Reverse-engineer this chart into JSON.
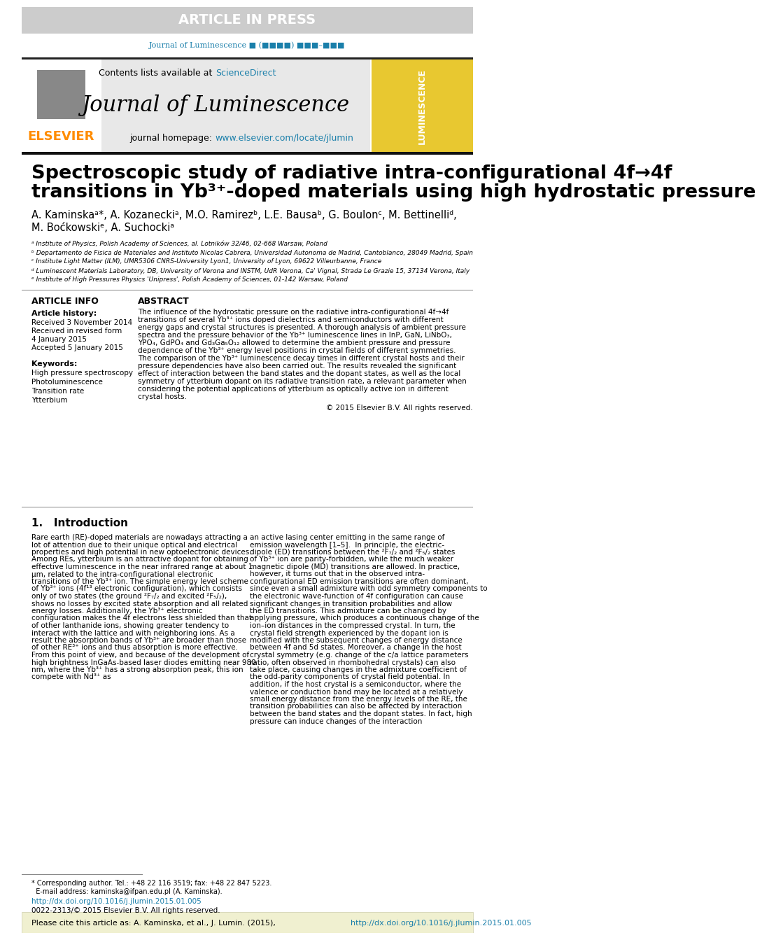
{
  "article_in_press_text": "ARTICLE IN PRESS",
  "article_in_press_bg": "#cccccc",
  "article_in_press_color": "#ffffff",
  "journal_ref_color": "#1a7faa",
  "journal_ref_text": "Journal of Luminescence ■ (■■■■) ■■■–■■■",
  "header_bg": "#e8e8e8",
  "contents_text": "Contents lists available at ",
  "sciencedirect_text": "ScienceDirect",
  "sciencedirect_color": "#1a7faa",
  "journal_title": "Journal of Luminescence",
  "journal_homepage_text": "journal homepage: ",
  "journal_homepage_url": "www.elsevier.com/locate/jlumin",
  "journal_homepage_url_color": "#1a7faa",
  "elsevier_color": "#ff8c00",
  "paper_title_line1": "Spectroscopic study of radiative intra-configurational 4f→4f",
  "paper_title_line2": "transitions in Yb³⁺-doped materials using high hydrostatic pressure",
  "authors_line1": "A. Kaminskaᵃ*, A. Kozaneckiᵃ, M.O. Ramirezᵇ, L.E. Bausaᵇ, G. Boulonᶜ, M. Bettinelliᵈ,",
  "authors_line2": "M. Boćkowskiᵉ, A. Suchockiᵃ",
  "affil_a": "ᵃ Institute of Physics, Polish Academy of Sciences, al. Lotników 32/46, 02-668 Warsaw, Poland",
  "affil_b": "ᵇ Departamento de Fisica de Materiales and Instituto Nicolas Cabrera, Universidad Autonoma de Madrid, Cantoblanco, 28049 Madrid, Spain",
  "affil_c": "ᶜ Institute Light Matter (ILM), UMR5306 CNRS-University Lyon1, University of Lyon, 69622 Villeurbanne, France",
  "affil_d": "ᵈ Luminescent Materials Laboratory, DB, University of Verona and INSTM, UdR Verona, Ca' Vignal, Strada Le Grazie 15, 37134 Verona, Italy",
  "affil_e": "ᵉ Institute of High Pressures Physics 'Unipress', Polish Academy of Sciences, 01-142 Warsaw, Poland",
  "article_info_title": "ARTICLE INFO",
  "article_history_title": "Article history:",
  "received_text": "Received 3 November 2014",
  "received_revised_text": "Received in revised form\n4 January 2015",
  "accepted_text": "Accepted 5 January 2015",
  "keywords_title": "Keywords:",
  "keywords": [
    "High pressure spectroscopy",
    "Photoluminescence",
    "Transition rate",
    "Ytterbium"
  ],
  "abstract_title": "ABSTRACT",
  "abstract_text": "The influence of the hydrostatic pressure on the radiative intra-configurational 4f→4f transitions of several Yb³⁺ ions doped dielectrics and semiconductors with different energy gaps and crystal structures is presented. A thorough analysis of ambient pressure spectra and the pressure behavior of the Yb³⁺ luminescence lines in InP, GaN, LiNbO₃, YPO₄, GdPO₄ and Gd₃Ga₅O₁₂ allowed to determine the ambient pressure and pressure dependence of the Yb³⁺ energy level positions in crystal fields of different symmetries. The comparison of the Yb³⁺ luminescence decay times in different crystal hosts and their pressure dependencies have also been carried out. The results revealed the significant effect of interaction between the band states and the dopant states, as well as the local symmetry of ytterbium dopant on its radiative transition rate, a relevant parameter when considering the potential applications of ytterbium as optically active ion in different crystal hosts.",
  "copyright_text": "© 2015 Elsevier B.V. All rights reserved.",
  "intro_title": "1.   Introduction",
  "intro_col1": "Rare earth (RE)-doped materials are nowadays attracting a lot of attention due to their unique optical and electrical properties and high potential in new optoelectronic devices. Among REs, ytterbium is an attractive dopant for obtaining effective luminescence in the near infrared range at about 1 μm, related to the intra-configurational electronic transitions of the Yb³⁺ ion. The simple energy level scheme of Yb³⁺ ions (4f¹³ electronic configuration), which consists only of two states (the ground ²F₇/₂ and excited ²F₅/₂), shows no losses by excited state absorption and all related energy losses. Additionally, the Yb³⁺ electronic configuration makes the 4f electrons less shielded than that of other lanthanide ions, showing greater tendency to interact with the lattice and with neighboring ions. As a result the absorption bands of Yb³⁺ are broader than those of other RE³⁺ ions and thus absorption is more effective. From this point of view, and because of the development of high brightness InGaAs-based laser diodes emitting near 980 nm, where the Yb³⁺ has a strong absorption peak, this ion compete with Nd³⁺ as",
  "intro_col2": "an active lasing center emitting in the same range of emission wavelength [1–5].\n\nIn principle, the electric-dipole (ED) transitions between the ²F₇/₂ and ²F₅/₂ states of Yb³⁺ ion are parity-forbidden, while the much weaker magnetic dipole (MD) transitions are allowed. In practice, however, it turns out that in the observed intra-configurational ED emission transitions are often dominant, since even a small admixture with odd symmetry components to the electronic wave-function of 4f configuration can cause significant changes in transition probabilities and allow the ED transitions. This admixture can be changed by applying pressure, which produces a continuous change of the ion–ion distances in the compressed crystal. In turn, the crystal field strength experienced by the dopant ion is modified with the subsequent changes of energy distance between 4f and 5d states. Moreover, a change in the host crystal symmetry (e.g. change of the c/a lattice parameters ratio, often observed in rhombohedral crystals) can also take place, causing changes in the admixture coefficient of the odd-parity components of crystal field potential. In addition, if the host crystal is a semiconductor, where the valence or conduction band may be located at a relatively small energy distance from the energy levels of the RE, the transition probabilities can also be affected by interaction between the band states and the dopant states. In fact, high pressure can induce changes of the interaction",
  "footnote_corresponding": "* Corresponding author. Tel.: +48 22 116 3519; fax: +48 22 847 5223.\n  E-mail address: kaminska@ifpan.edu.pl (A. Kaminska).",
  "doi_text": "http://dx.doi.org/10.1016/j.jlumin.2015.01.005",
  "doi_color": "#1a7faa",
  "issn_text": "0022-2313/© 2015 Elsevier B.V. All rights reserved.",
  "cite_bar_bg": "#f5f5dc",
  "cite_text": "Please cite this article as: A. Kaminska, et al., J. Lumin. (2015), http://dx.doi.org/10.1016/j.jlumin.2015.01.005",
  "cite_url_color": "#1a7faa"
}
